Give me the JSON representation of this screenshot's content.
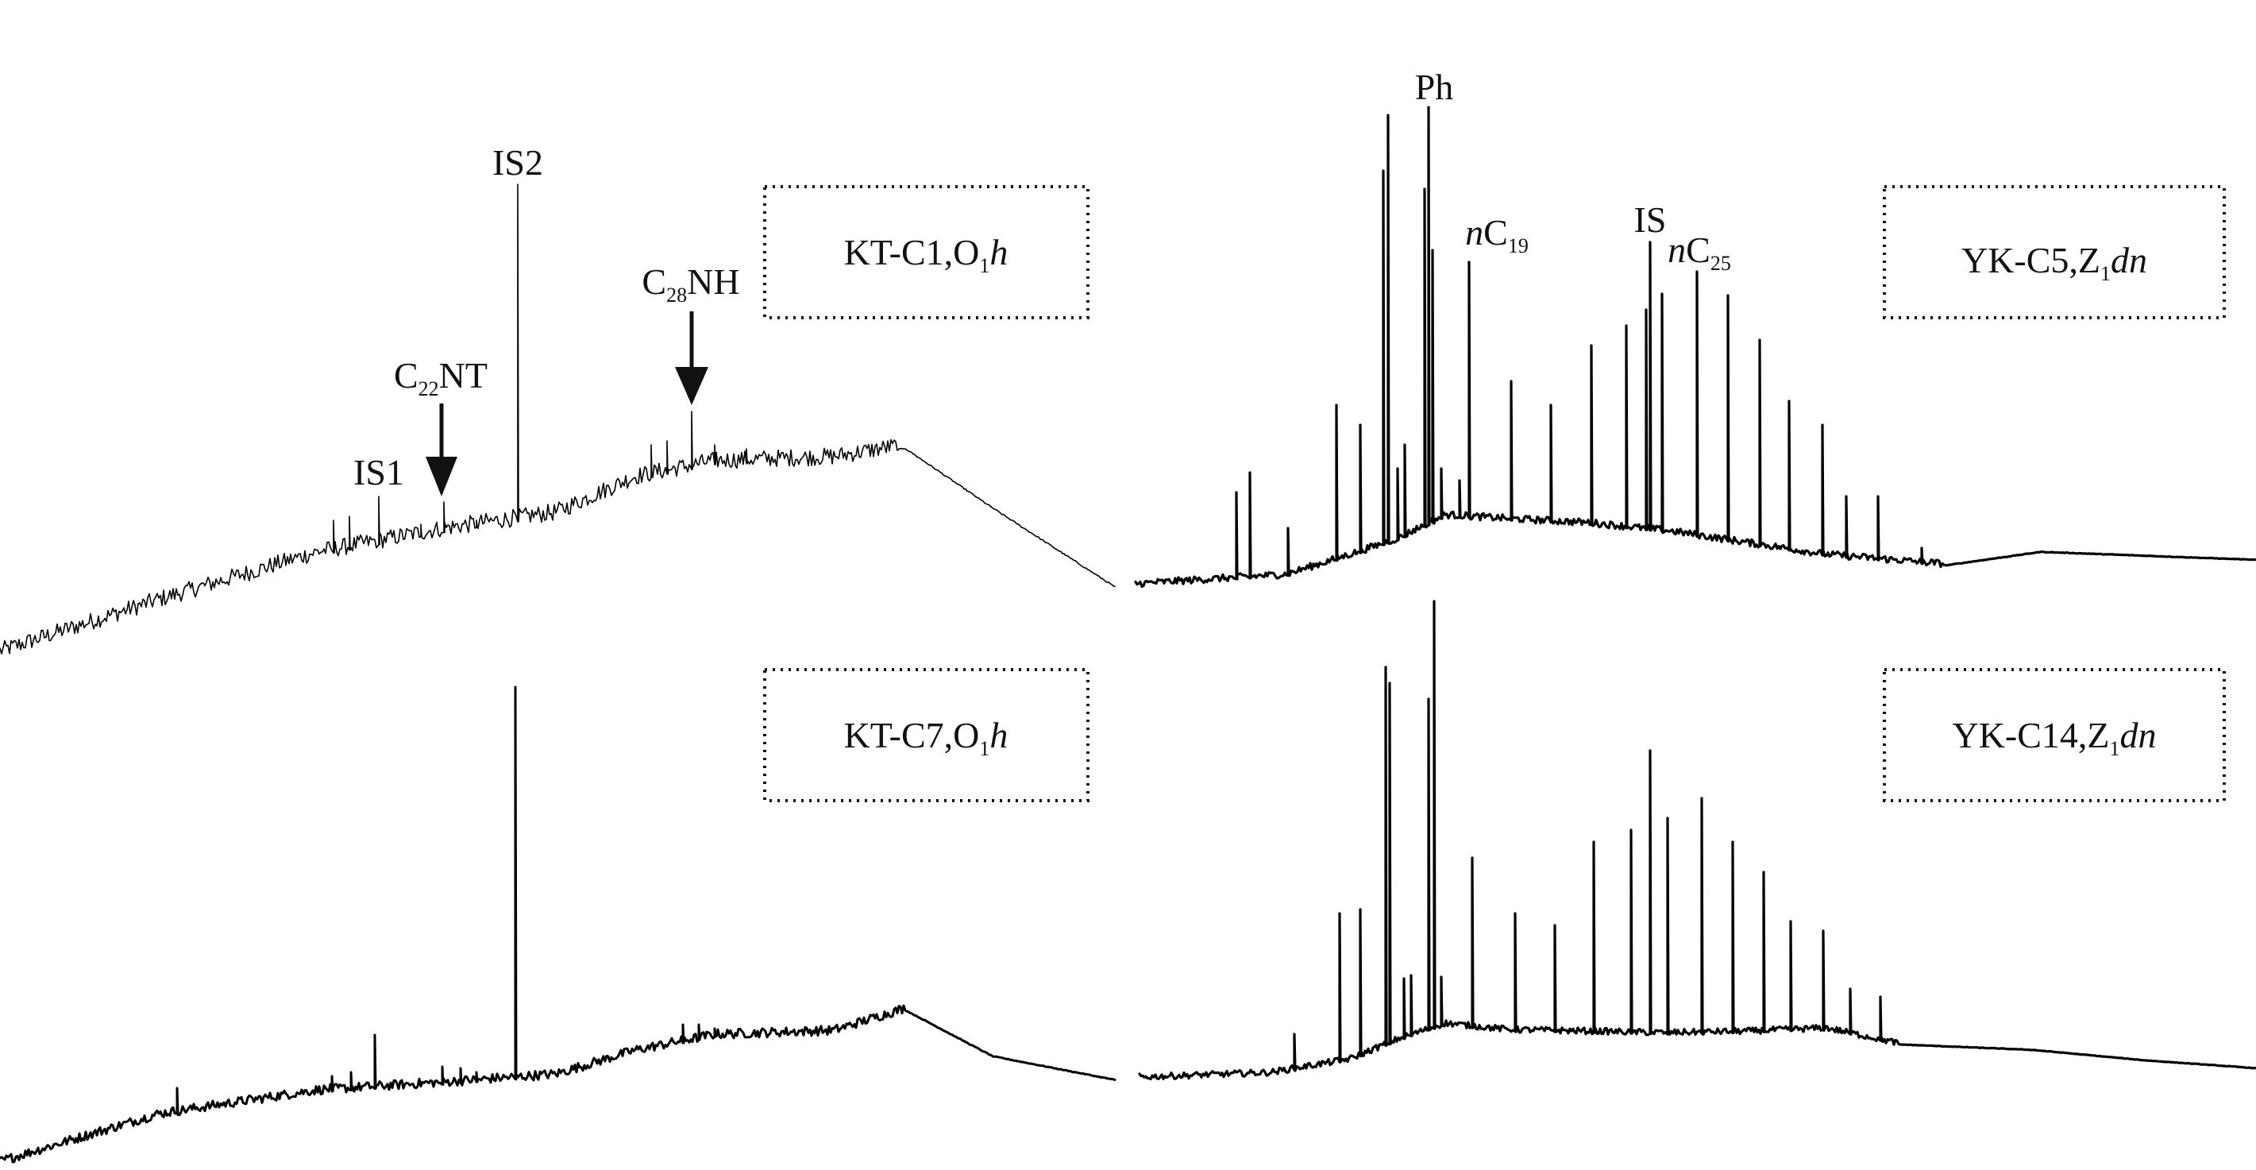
{
  "chart_data": [
    {
      "type": "line",
      "title": "",
      "sample": {
        "name": "KT-C1,O",
        "sub": "1",
        "suffix": "h"
      },
      "annotations": [
        {
          "text": "IS1"
        },
        {
          "pre": "C",
          "sub": "22",
          "post": "NT"
        },
        {
          "text": "IS2"
        },
        {
          "pre": "C",
          "sub": "28",
          "post": "NH"
        }
      ],
      "xlabel": "",
      "ylabel": "",
      "baseline_shape": "rising hump, maximum at ~0.81 of run, then decay",
      "peaks_relative_intensity": {
        "IS1": 0.12,
        "C22NT": 0.08,
        "IS2": 1.0,
        "C28NH": 0.12
      }
    },
    {
      "type": "line",
      "title": "",
      "sample": {
        "name": "KT-C7,O",
        "sub": "1",
        "suffix": "h"
      },
      "annotations": [],
      "xlabel": "",
      "ylabel": "",
      "baseline_shape": "rising hump, maximum at ~0.81 of run, then decay",
      "peaks_relative_intensity": {
        "IS1": 0.1,
        "C22NT": 0.04,
        "IS2": 1.0
      }
    },
    {
      "type": "line",
      "title": "",
      "sample": {
        "name": "YK-C5,Z",
        "sub": "1",
        "suffix": "dn"
      },
      "annotations": [
        {
          "text": "Ph"
        },
        {
          "italic": "n",
          "pre": "C",
          "sub": "19"
        },
        {
          "text": "IS"
        },
        {
          "italic": "n",
          "pre": "C",
          "sub": "25"
        }
      ],
      "xlabel": "",
      "ylabel": "",
      "baseline_shape": "broad unresolved hump centred mid-run",
      "n_alkane_series_relative_intensity": [
        0.1,
        0.14,
        0.08,
        0.22,
        0.2,
        0.55,
        0.6,
        0.36,
        0.66,
        0.42,
        0.22,
        0.24,
        0.34,
        0.3,
        0.56,
        0.86,
        0.4,
        0.44,
        0.4,
        0.36,
        0.32,
        0.24,
        0.2,
        0.1,
        0.06
      ]
    },
    {
      "type": "line",
      "title": "",
      "sample": {
        "name": "YK-C14,Z",
        "sub": "1",
        "suffix": "dn"
      },
      "annotations": [],
      "xlabel": "",
      "ylabel": "",
      "baseline_shape": "broad unresolved hump centred mid-run",
      "n_alkane_series_relative_intensity": [
        0.06,
        0.1,
        0.3,
        0.3,
        0.86,
        0.92,
        0.2,
        0.26,
        0.18,
        0.12,
        0.48,
        0.5,
        0.7,
        0.66,
        0.54,
        0.46,
        0.3,
        0.26,
        0.2,
        0.12
      ]
    }
  ]
}
